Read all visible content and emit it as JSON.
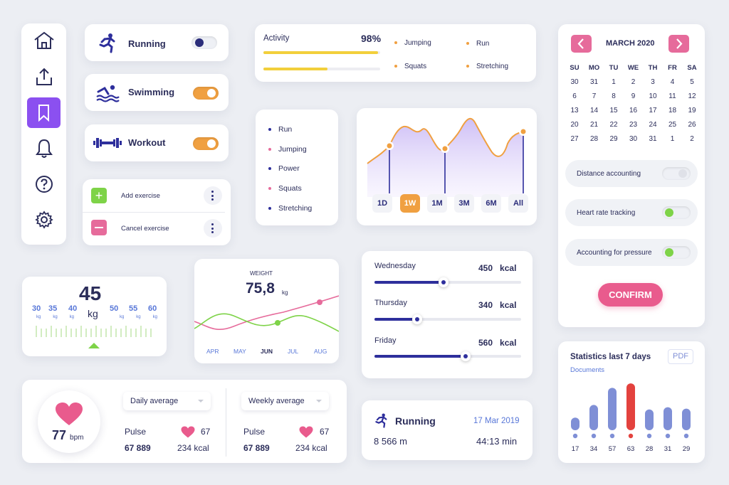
{
  "nav": {
    "items": [
      "home-icon",
      "share-icon",
      "bookmark-icon",
      "bell-icon",
      "help-icon",
      "settings-icon"
    ],
    "active_index": 2,
    "accent": "#8b50f0"
  },
  "sports": [
    {
      "label": "Running",
      "icon": "running-icon",
      "state": "off"
    },
    {
      "label": "Swimming",
      "icon": "swimming-icon",
      "state": "on"
    },
    {
      "label": "Workout",
      "icon": "dumbbell-icon",
      "state": "on"
    }
  ],
  "exercise_menu": {
    "add": "Add exercise",
    "cancel": "Cancel exercise"
  },
  "activity": {
    "label": "Activity",
    "percent": "98%",
    "bar1_fill": 0.98,
    "bar2_fill": 0.55,
    "legend": [
      "Jumping",
      "Run",
      "Squats",
      "Stretching"
    ]
  },
  "list": [
    "Run",
    "Jumping",
    "Power",
    "Squats",
    "Stretching"
  ],
  "ranges": [
    "1D",
    "1W",
    "1M",
    "3M",
    "6M",
    "All"
  ],
  "active_range": "1W",
  "calendar": {
    "title": "MARCH 2020",
    "weekdays": [
      "SU",
      "MO",
      "TU",
      "WE",
      "TH",
      "FR",
      "SA"
    ],
    "weeks": [
      [
        "30",
        "31",
        "1",
        "2",
        "3",
        "4",
        "5"
      ],
      [
        "6",
        "7",
        "8",
        "9",
        "10",
        "11",
        "12"
      ],
      [
        "13",
        "14",
        "15",
        "16",
        "17",
        "18",
        "19"
      ],
      [
        "20",
        "21",
        "22",
        "23",
        "24",
        "25",
        "26"
      ],
      [
        "27",
        "28",
        "29",
        "30",
        "31",
        "1",
        "2"
      ]
    ]
  },
  "settings": [
    {
      "label": "Distance accounting",
      "state": "off"
    },
    {
      "label": "Heart rate tracking",
      "state": "on"
    },
    {
      "label": "Accounting for pressure",
      "state": "on"
    }
  ],
  "confirm_label": "CONFIRM",
  "scale": {
    "value": "45",
    "unit": "kg",
    "left_ticks": [
      "30",
      "35",
      "40"
    ],
    "right_ticks": [
      "50",
      "55",
      "60"
    ]
  },
  "weight": {
    "label": "WEIGHT",
    "value": "75,8",
    "unit": "kg",
    "months": [
      "APR",
      "MAY",
      "JUN",
      "JUL",
      "AUG"
    ],
    "active_month": "JUN"
  },
  "kcal": [
    {
      "day": "Wednesday",
      "value": "450",
      "unit": "kcal",
      "fill": 0.47
    },
    {
      "day": "Thursday",
      "value": "340",
      "unit": "kcal",
      "fill": 0.29
    },
    {
      "day": "Friday",
      "value": "560",
      "unit": "kcal",
      "fill": 0.62
    }
  ],
  "pulse_card": {
    "bpm": "77",
    "bpm_unit": "bpm",
    "daily": {
      "select": "Daily average",
      "pulse_label": "Pulse",
      "pulse": "67",
      "steps": "67 889",
      "kcal": "234 kcal"
    },
    "weekly": {
      "select": "Weekly average",
      "pulse_label": "Pulse",
      "pulse": "67",
      "steps": "67 889",
      "kcal": "234 kcal"
    }
  },
  "run_summary": {
    "title": "Running",
    "date": "17 Mar 2019",
    "distance": "8 566 m",
    "time": "44:13 min"
  },
  "stats": {
    "title": "Statistics last 7 days",
    "subtitle": "Documents",
    "pdf_label": "PDF",
    "chart_data": {
      "type": "bar",
      "categories": [
        "17",
        "34",
        "57",
        "63",
        "28",
        "31",
        "29"
      ],
      "values": [
        17,
        34,
        57,
        63,
        28,
        31,
        29
      ],
      "highlight_index": 3,
      "colors": {
        "bar": "#7f8fd6",
        "highlight": "#e3423e"
      }
    }
  }
}
